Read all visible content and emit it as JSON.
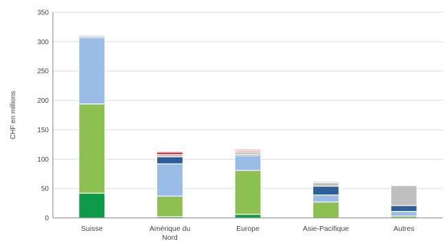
{
  "chart_data": {
    "type": "bar",
    "stacked": true,
    "title": "",
    "xlabel": "",
    "ylabel": "CHF en millions",
    "ylim": [
      0,
      350
    ],
    "yticks": [
      0,
      50,
      100,
      150,
      200,
      250,
      300,
      350
    ],
    "grid": true,
    "legend": "none",
    "categories": [
      {
        "lines": [
          "Suisse"
        ]
      },
      {
        "lines": [
          "Amérique du",
          "Nord"
        ]
      },
      {
        "lines": [
          "Europe"
        ]
      },
      {
        "lines": [
          "Asie-Pacifique"
        ]
      },
      {
        "lines": [
          "Autres"
        ]
      }
    ],
    "series": [
      {
        "color": "#0f9a4a",
        "values": [
          42,
          2,
          6,
          0,
          0
        ]
      },
      {
        "color": "#8cc152",
        "values": [
          152,
          35,
          75,
          27,
          3
        ]
      },
      {
        "color": "#99bde6",
        "values": [
          113,
          55,
          25,
          12,
          8
        ]
      },
      {
        "color": "#2e5f9b",
        "values": [
          2,
          12,
          2,
          15,
          10
        ]
      },
      {
        "color": "#bfbfbf",
        "values": [
          2,
          4,
          4,
          6,
          34
        ]
      },
      {
        "color": "#e31e24",
        "values": [
          0,
          4,
          2,
          0,
          0
        ]
      },
      {
        "color": "#f2b5a8",
        "values": [
          0,
          2,
          3,
          2,
          0
        ]
      }
    ]
  }
}
